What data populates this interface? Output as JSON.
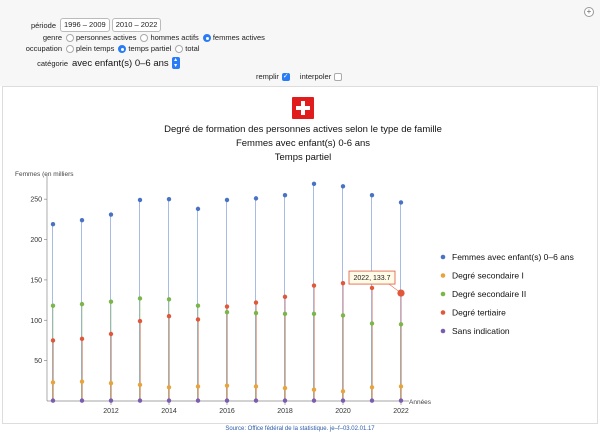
{
  "controls": {
    "periode": {
      "label": "période",
      "options": [
        "1996 – 2009",
        "2010 – 2022"
      ]
    },
    "genre": {
      "label": "genre",
      "options": [
        "personnes actives",
        "hommes actifs",
        "femmes actives"
      ],
      "selected": 2
    },
    "occupation": {
      "label": "occupation",
      "options": [
        "plein temps",
        "temps partiel",
        "total"
      ],
      "selected": 1
    },
    "categorie": {
      "label": "catégorie",
      "value": "avec enfant(s) 0–6 ans"
    },
    "remplir": {
      "label": "remplir",
      "checked": true
    },
    "interpoler": {
      "label": "interpoler",
      "checked": false
    }
  },
  "chart_data": {
    "type": "scatter",
    "title": "Degré de formation des personnes actives selon le type de famille",
    "subtitle1": "Femmes avec enfant(s) 0-6 ans",
    "subtitle2": "Temps partiel",
    "ylabel": "Femmes (en milliers",
    "xlabel": "Années",
    "ylim": [
      0,
      275
    ],
    "xlim": [
      2010,
      2022
    ],
    "x_ticks": [
      2012,
      2014,
      2016,
      2018,
      2020,
      2022
    ],
    "y_ticks": [
      50,
      100,
      150,
      200,
      250
    ],
    "x": [
      2010,
      2011,
      2012,
      2013,
      2014,
      2015,
      2016,
      2017,
      2018,
      2019,
      2020,
      2021,
      2022
    ],
    "series": [
      {
        "name": "Femmes avec enfant(s) 0–6 ans",
        "color": "#4a72c4",
        "values": [
          219,
          224,
          231,
          249,
          250,
          238,
          249,
          251,
          255,
          269,
          266,
          255,
          246
        ]
      },
      {
        "name": "Degré secondaire I",
        "color": "#e8a33a",
        "values": [
          23,
          24,
          22,
          20,
          17,
          18,
          19,
          18,
          16,
          14,
          12,
          17,
          18
        ]
      },
      {
        "name": "Degré secondaire II",
        "color": "#7ab648",
        "values": [
          118,
          120,
          123,
          127,
          126,
          118,
          110,
          109,
          108,
          108,
          106,
          96,
          95
        ]
      },
      {
        "name": "Degré tertiaire",
        "color": "#e0573a",
        "values": [
          75,
          77,
          83,
          99,
          105,
          101,
          117,
          122,
          129,
          143,
          146,
          140,
          133.7
        ]
      },
      {
        "name": "Sans indication",
        "color": "#7a5cb0",
        "values": [
          0.5,
          0.5,
          0.5,
          0.5,
          0.5,
          0.5,
          0.5,
          0.5,
          0.5,
          0.5,
          0.5,
          0.5,
          0.5
        ]
      }
    ],
    "tooltip": {
      "text": "2022, 133.7",
      "x": 2022,
      "y": 133.7
    },
    "grid": false,
    "legend": "right"
  },
  "source": "Source: Office fédéral de la statistique. je–f–03.02.01.17",
  "flag_color": "#e11c1c"
}
